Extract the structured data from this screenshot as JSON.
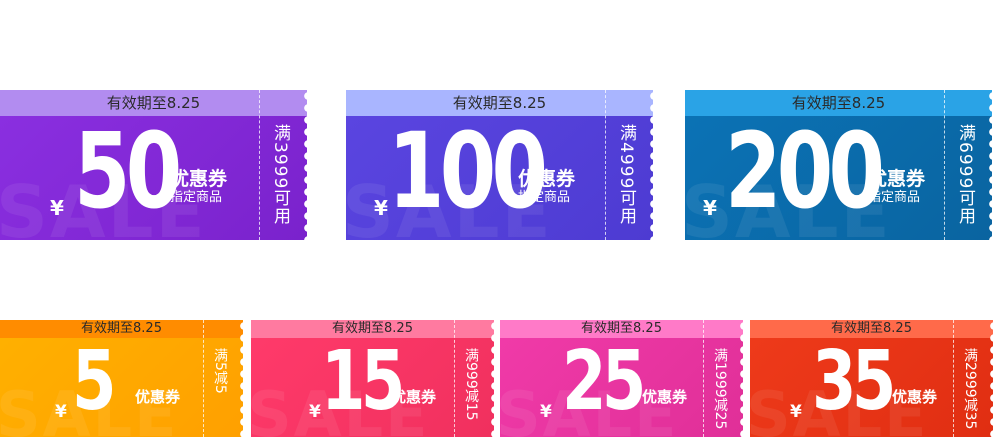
{
  "large_coupons": [
    {
      "validity": "有效期至8.25",
      "currency": "¥",
      "amount": "50",
      "title": "优惠券",
      "subtitle": "指定商品",
      "condition": "满3999可用",
      "watermark": "SALE",
      "band_color": "#b28cf0",
      "body_color": "#8a2fe0",
      "body_color2": "#7a22cc"
    },
    {
      "validity": "有效期至8.25",
      "currency": "¥",
      "amount": "100",
      "title": "优惠券",
      "subtitle": "指定商品",
      "condition": "满4999可用",
      "watermark": "SALE",
      "band_color": "#a9b5ff",
      "body_color": "#5a45e0",
      "body_color2": "#4d3bd2"
    },
    {
      "validity": "有效期至8.25",
      "currency": "¥",
      "amount": "200",
      "title": "优惠券",
      "subtitle": "指定商品",
      "condition": "满6999可用",
      "watermark": "SALE",
      "band_color": "#2aa3e6",
      "body_color": "#0b72b5",
      "body_color2": "#0a64a0"
    }
  ],
  "small_coupons": [
    {
      "validity": "有效期至8.25",
      "currency": "¥",
      "amount": "5",
      "title": "优惠券",
      "condition": "满5减5",
      "watermark": "SALE",
      "band_color": "#ff8c00",
      "body_color": "#ffb000",
      "body_color2": "#ffa000"
    },
    {
      "validity": "有效期至8.25",
      "currency": "¥",
      "amount": "15",
      "title": "优惠券",
      "condition": "满999减15",
      "watermark": "SALE",
      "band_color": "#ff7aa0",
      "body_color": "#ff3a6a",
      "body_color2": "#f0305e"
    },
    {
      "validity": "有效期至8.25",
      "currency": "¥",
      "amount": "25",
      "title": "优惠券",
      "condition": "满1999减25",
      "watermark": "SALE",
      "band_color": "#ff7ac8",
      "body_color": "#f03aa8",
      "body_color2": "#e02f98"
    },
    {
      "validity": "有效期至8.25",
      "currency": "¥",
      "amount": "35",
      "title": "优惠券",
      "condition": "满2999减35",
      "watermark": "SALE",
      "band_color": "#ff6a4a",
      "body_color": "#ee3a1a",
      "body_color2": "#e02e12"
    }
  ]
}
